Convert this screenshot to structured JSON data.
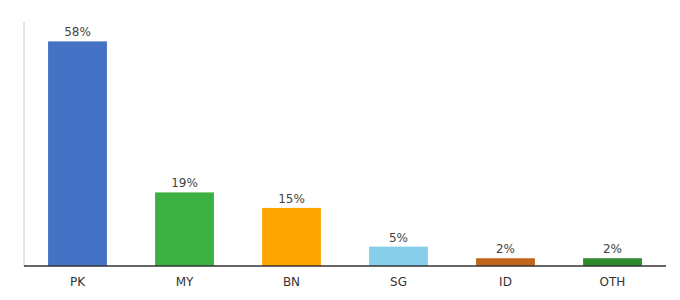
{
  "chart_data": {
    "type": "bar",
    "categories": [
      "PK",
      "MY",
      "BN",
      "SG",
      "ID",
      "OTH"
    ],
    "values": [
      58,
      19,
      15,
      5,
      2,
      2
    ],
    "value_labels": [
      "58%",
      "19%",
      "15%",
      "5%",
      "2%",
      "2%"
    ],
    "colors": [
      "#4472C4",
      "#3CB043",
      "#FFA500",
      "#87CEEB",
      "#C0651A",
      "#2D8A2D"
    ],
    "ylim": [
      0,
      63
    ],
    "data_labels": true,
    "tick_labels": "x"
  }
}
